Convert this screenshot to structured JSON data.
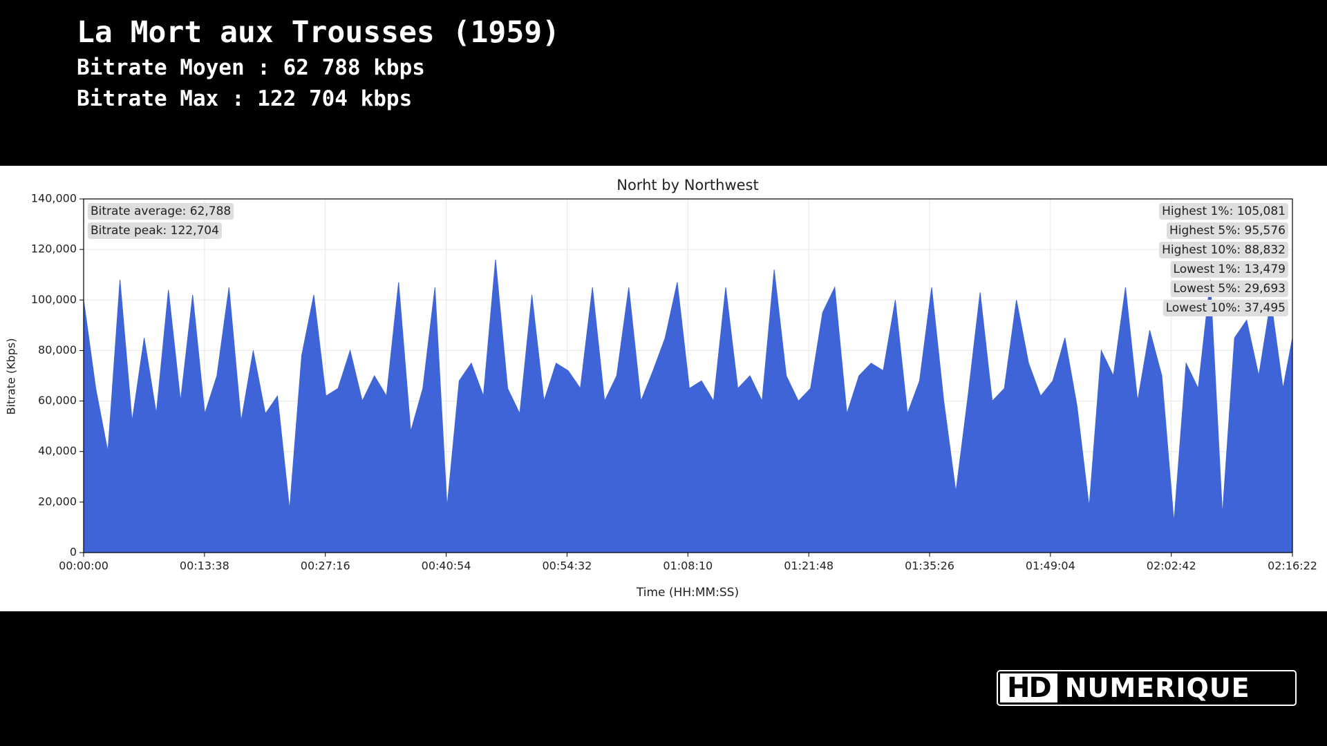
{
  "header": {
    "title": "La Mort aux Trousses (1959)",
    "lines": [
      "Bitrate Moyen : 62 788 kbps",
      "Bitrate Max : 122 704 kbps"
    ]
  },
  "logo": [
    "HD",
    "NUMERIQUE"
  ],
  "chart_data": {
    "type": "area",
    "title": "Norht by Northwest",
    "x_label": "Time (HH:MM:SS)",
    "y_label": "Bitrate (Kbps)",
    "color": "#3f64d8",
    "grid": true,
    "annotations_left": [
      "Bitrate average: 62,788",
      "Bitrate peak: 122,704"
    ],
    "annotations_right": [
      "Highest 1%: 105,081",
      "Highest 5%: 95,576",
      "Highest 10%: 88,832",
      "Lowest 1%: 13,479",
      "Lowest 5%: 29,693",
      "Lowest 10%: 37,495"
    ],
    "xlim": [
      0,
      8182
    ],
    "xticks": [
      {
        "value": 0,
        "label": "00:00:00"
      },
      {
        "value": 818,
        "label": "00:13:38"
      },
      {
        "value": 1636,
        "label": "00:27:16"
      },
      {
        "value": 2454,
        "label": "00:40:54"
      },
      {
        "value": 3272,
        "label": "00:54:32"
      },
      {
        "value": 4090,
        "label": "01:08:10"
      },
      {
        "value": 4908,
        "label": "01:21:48"
      },
      {
        "value": 5726,
        "label": "01:35:26"
      },
      {
        "value": 6544,
        "label": "01:49:04"
      },
      {
        "value": 7362,
        "label": "02:02:42"
      },
      {
        "value": 8182,
        "label": "02:16:22"
      }
    ],
    "ylim": [
      0,
      140000
    ],
    "yticks": [
      0,
      {
        "value": 20000,
        "label": "20,000"
      },
      {
        "value": 40000,
        "label": "40,000"
      },
      {
        "value": 60000,
        "label": "60,000"
      },
      {
        "value": 80000,
        "label": "80,000"
      },
      {
        "value": 100000,
        "label": "100,000"
      },
      {
        "value": 120000,
        "label": "120,000"
      },
      {
        "value": 140000,
        "label": "140,000"
      }
    ],
    "x": [
      0,
      82,
      164,
      246,
      328,
      410,
      492,
      574,
      656,
      738,
      820,
      902,
      984,
      1066,
      1148,
      1230,
      1312,
      1394,
      1476,
      1558,
      1640,
      1722,
      1804,
      1886,
      1968,
      2050,
      2132,
      2214,
      2296,
      2378,
      2460,
      2542,
      2624,
      2706,
      2788,
      2870,
      2952,
      3034,
      3116,
      3198,
      3280,
      3362,
      3444,
      3526,
      3608,
      3690,
      3772,
      3854,
      3936,
      4018,
      4100,
      4182,
      4264,
      4346,
      4428,
      4510,
      4592,
      4674,
      4756,
      4838,
      4920,
      5002,
      5084,
      5166,
      5248,
      5330,
      5412,
      5494,
      5576,
      5658,
      5740,
      5822,
      5904,
      5986,
      6068,
      6150,
      6232,
      6314,
      6396,
      6478,
      6560,
      6642,
      6724,
      6806,
      6888,
      6970,
      7052,
      7134,
      7216,
      7298,
      7380,
      7462,
      7544,
      7626,
      7708,
      7790,
      7872,
      7954,
      8036,
      8118,
      8182
    ],
    "values": [
      100000,
      65000,
      40000,
      108000,
      52000,
      85000,
      55000,
      104000,
      60000,
      102000,
      55000,
      70000,
      105000,
      52000,
      80000,
      55000,
      62000,
      17000,
      78000,
      102000,
      62000,
      65000,
      80000,
      60000,
      70000,
      62000,
      107000,
      48000,
      65000,
      105000,
      18000,
      68000,
      75000,
      62000,
      116000,
      65000,
      55000,
      102000,
      60000,
      75000,
      72000,
      65000,
      105000,
      60000,
      70000,
      105000,
      60000,
      72000,
      85000,
      107000,
      65000,
      68000,
      60000,
      105000,
      65000,
      70000,
      60000,
      112000,
      70000,
      60000,
      65000,
      95000,
      105000,
      55000,
      70000,
      75000,
      72000,
      100000,
      55000,
      68000,
      105000,
      60000,
      24000,
      62000,
      103000,
      60000,
      65000,
      100000,
      75000,
      62000,
      68000,
      85000,
      58000,
      18000,
      80000,
      70000,
      105000,
      60000,
      88000,
      70000,
      12000,
      75000,
      65000,
      108000,
      15000,
      85000,
      92000,
      70000,
      100000,
      65000,
      85000
    ]
  }
}
